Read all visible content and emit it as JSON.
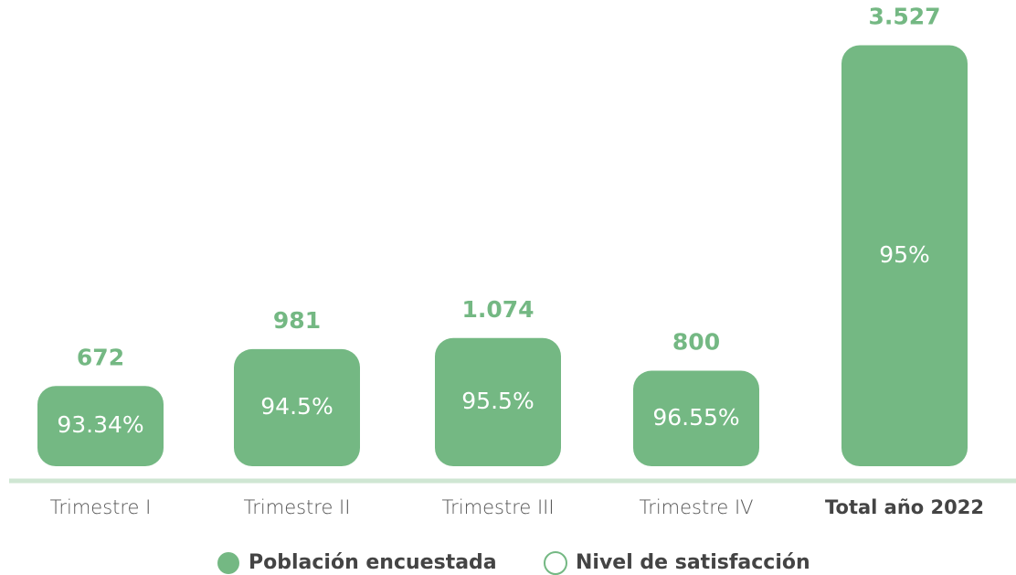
{
  "chart_data": {
    "type": "bar",
    "categories": [
      "Trimestre I",
      "Trimestre II",
      "Trimestre III",
      "Trimestre IV",
      "Total año 2022"
    ],
    "series": [
      {
        "name": "Población encuestada",
        "color": "#74b883",
        "values": [
          672,
          981,
          1074,
          800,
          3527
        ],
        "value_labels": [
          "672",
          "981",
          "1.074",
          "800",
          "3.527"
        ]
      },
      {
        "name": "Nivel de satisfacción",
        "color": "#74b883",
        "values": [
          93.34,
          94.5,
          95.5,
          96.55,
          95
        ],
        "value_labels": [
          "93.34%",
          "94.5%",
          "95.5%",
          "96.55%",
          "95%"
        ]
      }
    ],
    "ylim": [
      0,
      3600
    ]
  }
}
